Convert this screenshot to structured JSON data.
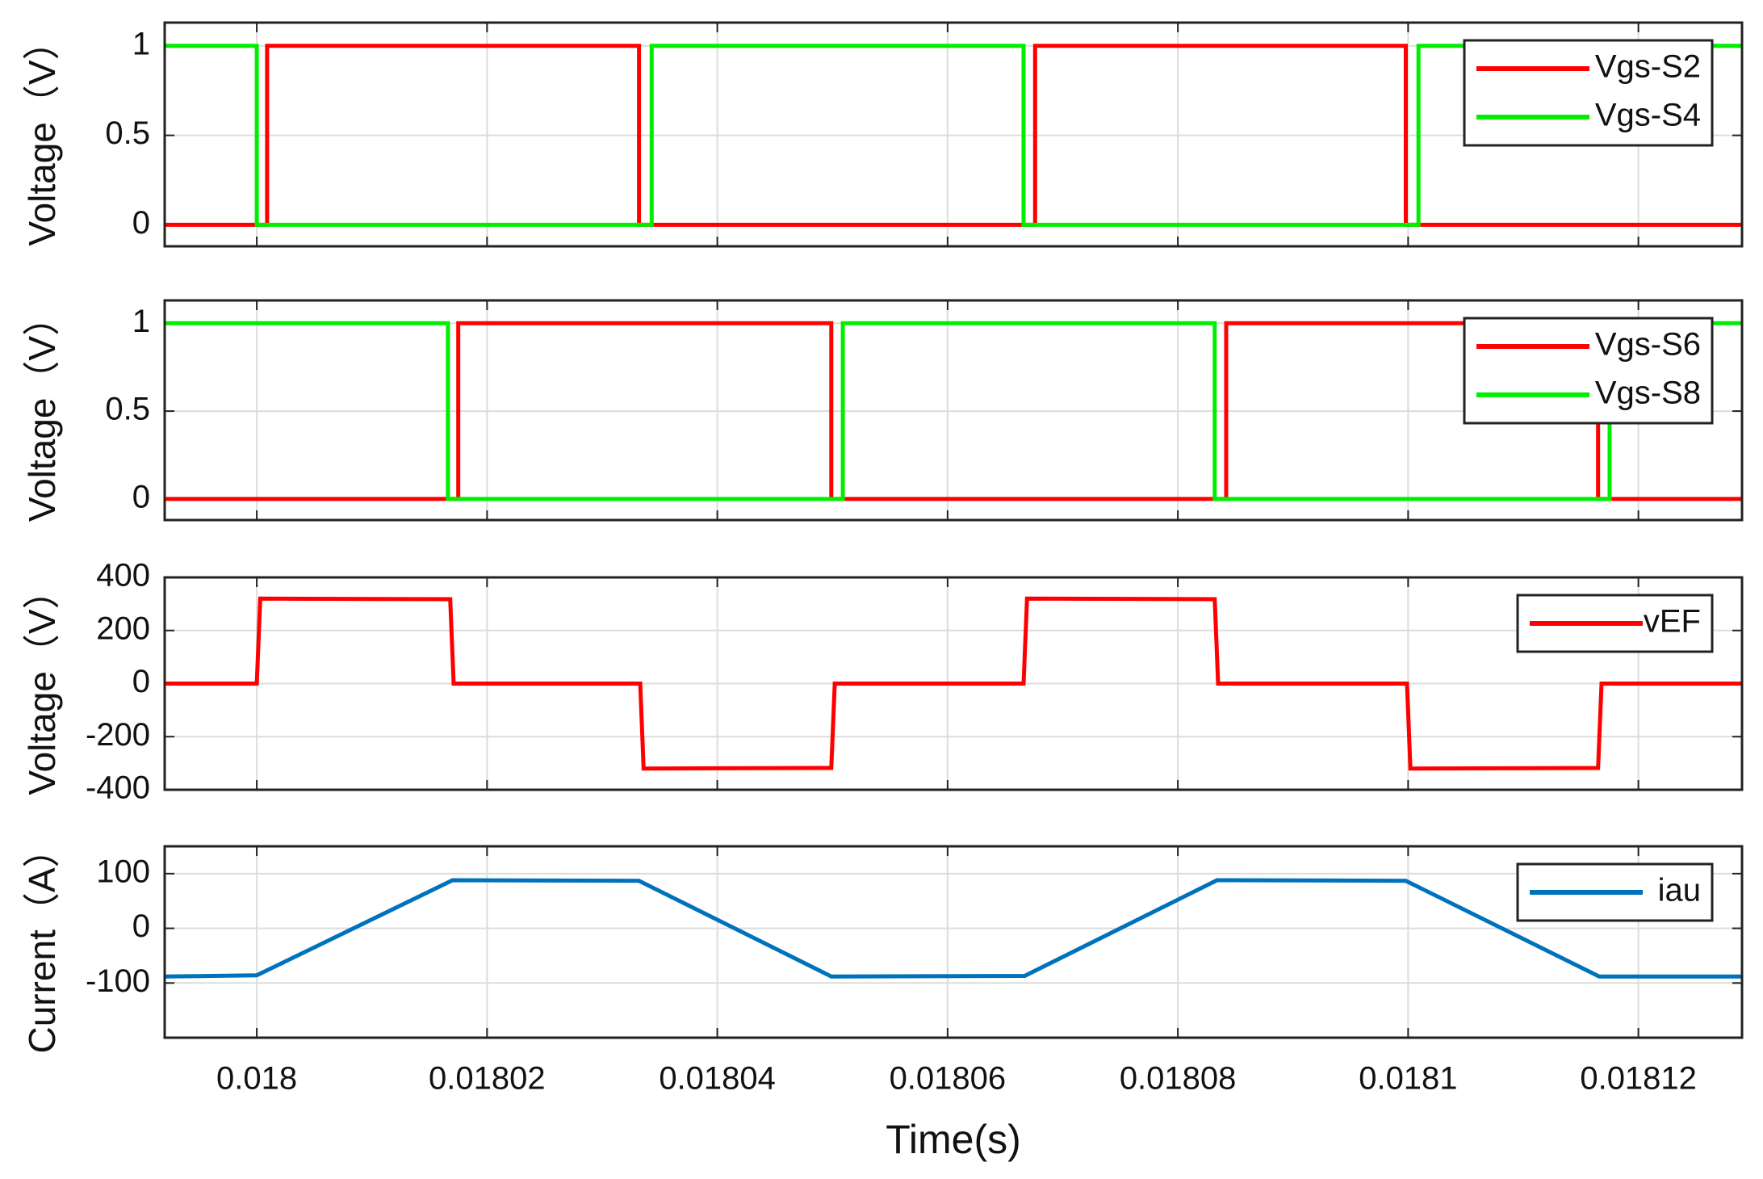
{
  "chart_data": [
    {
      "type": "line",
      "ylabel": "Voltage（V）",
      "xlim": [
        0.017992,
        0.018129
      ],
      "xticks": [
        0.018,
        0.01802,
        0.01804,
        0.01806,
        0.01808,
        0.0181,
        0.01812
      ],
      "ylim": [
        -0.12,
        1.13
      ],
      "yticks": [
        0,
        0.5,
        1
      ],
      "grid": true,
      "legend": "upper right",
      "series": [
        {
          "name": "Vgs-S2",
          "color": "#ff0000",
          "x": [
            0.017992,
            0.0180009,
            0.0180009,
            0.0180332,
            0.0180332,
            0.0180676,
            0.0180676,
            0.0180998,
            0.0180998,
            0.018129
          ],
          "values": [
            0,
            0,
            1,
            1,
            0,
            0,
            1,
            1,
            0,
            0
          ]
        },
        {
          "name": "Vgs-S4",
          "color": "#00ee00",
          "x": [
            0.017992,
            0.018,
            0.018,
            0.0180343,
            0.0180343,
            0.0180666,
            0.0180666,
            0.0181009,
            0.0181009,
            0.018129
          ],
          "values": [
            1,
            1,
            0,
            0,
            1,
            1,
            0,
            0,
            1,
            1
          ]
        }
      ]
    },
    {
      "type": "line",
      "ylabel": "Voltage（V）",
      "xlim": [
        0.017992,
        0.018129
      ],
      "xticks": [
        0.018,
        0.01802,
        0.01804,
        0.01806,
        0.01808,
        0.0181,
        0.01812
      ],
      "ylim": [
        -0.12,
        1.13
      ],
      "yticks": [
        0,
        0.5,
        1
      ],
      "grid": true,
      "legend": "upper right",
      "series": [
        {
          "name": "Vgs-S6",
          "color": "#ff0000",
          "x": [
            0.017992,
            0.0180175,
            0.0180175,
            0.0180499,
            0.0180499,
            0.0180842,
            0.0180842,
            0.0181165,
            0.0181165,
            0.018129
          ],
          "values": [
            0,
            0,
            1,
            1,
            0,
            0,
            1,
            1,
            0,
            0
          ]
        },
        {
          "name": "Vgs-S8",
          "color": "#00ee00",
          "x": [
            0.017992,
            0.0180166,
            0.0180166,
            0.0180509,
            0.0180509,
            0.0180832,
            0.0180832,
            0.0181175,
            0.0181175,
            0.018129
          ],
          "values": [
            1,
            1,
            0,
            0,
            1,
            1,
            0,
            0,
            1,
            1
          ]
        }
      ]
    },
    {
      "type": "line",
      "ylabel": "Voltage（V）",
      "xlim": [
        0.017992,
        0.018129
      ],
      "xticks": [
        0.018,
        0.01802,
        0.01804,
        0.01806,
        0.01808,
        0.0181,
        0.01812
      ],
      "ylim": [
        -400,
        400
      ],
      "yticks": [
        -400,
        -200,
        0,
        200,
        400
      ],
      "grid": true,
      "legend": "upper right",
      "series": [
        {
          "name": "vEF",
          "color": "#ff0000",
          "x": [
            0.017992,
            0.018,
            0.0180003,
            0.0180168,
            0.0180171,
            0.0180333,
            0.0180336,
            0.0180499,
            0.0180502,
            0.0180666,
            0.0180669,
            0.0180832,
            0.0180835,
            0.0180999,
            0.0181002,
            0.0181165,
            0.0181168,
            0.018129
          ],
          "values": [
            0,
            0,
            320,
            318,
            0,
            0,
            -320,
            -318,
            0,
            0,
            320,
            318,
            0,
            0,
            -320,
            -318,
            0,
            0
          ]
        }
      ]
    },
    {
      "type": "line",
      "ylabel": "Current（A）",
      "xlabel": "Time(s)",
      "xlim": [
        0.017992,
        0.018129
      ],
      "xticks": [
        0.018,
        0.01802,
        0.01804,
        0.01806,
        0.01808,
        0.0181,
        0.01812
      ],
      "ylim": [
        -200,
        150
      ],
      "yticks": [
        -100,
        0,
        100
      ],
      "grid": true,
      "legend": "upper right",
      "series": [
        {
          "name": "iau",
          "color": "#0072bd",
          "x": [
            0.017992,
            0.018,
            0.018017,
            0.0180332,
            0.0180499,
            0.0180667,
            0.0180834,
            0.0180998,
            0.0181166,
            0.018129
          ],
          "values": [
            -88,
            -86,
            88,
            87,
            -88,
            -87,
            88,
            87,
            -88,
            -88
          ]
        }
      ]
    }
  ]
}
